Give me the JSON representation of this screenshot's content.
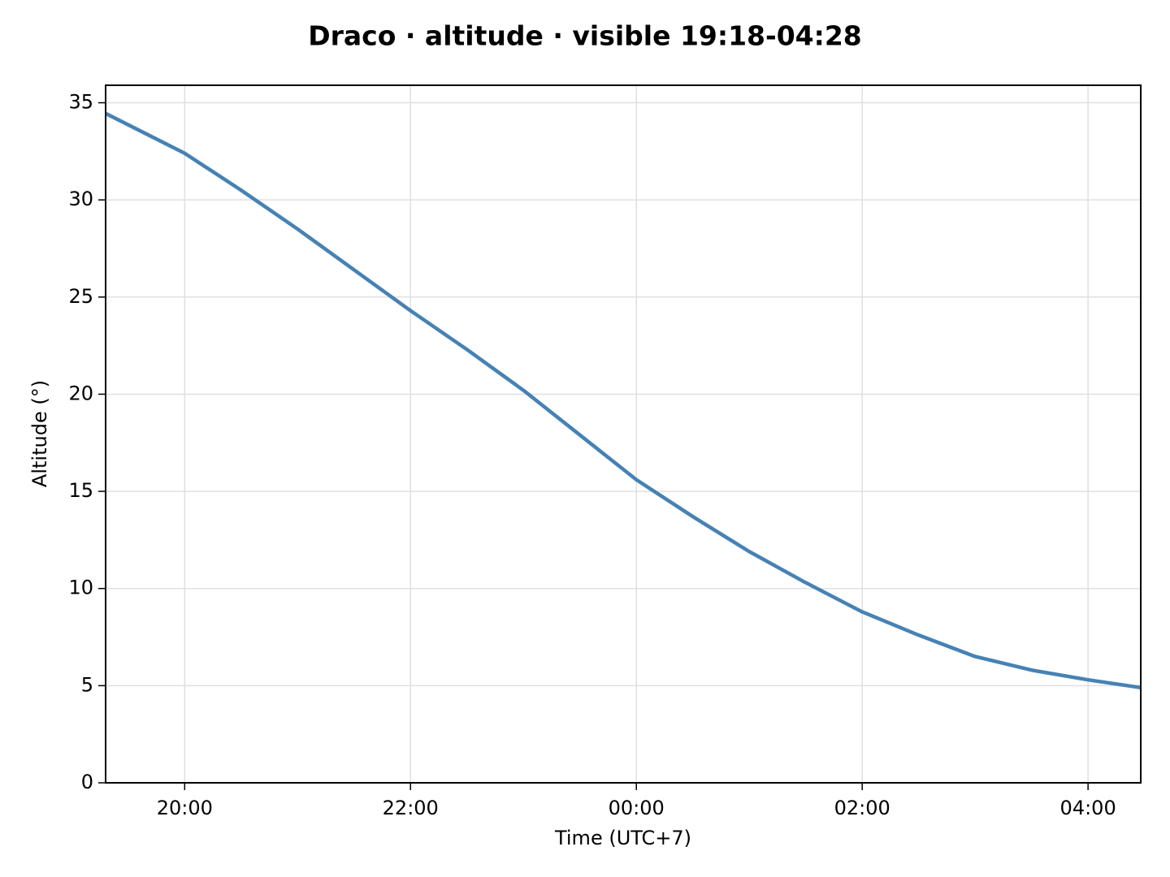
{
  "chart_data": {
    "type": "line",
    "title": "Draco · altitude · visible 19:18-04:28",
    "x_label": "Time (UTC+7)",
    "y_label": "Altitude (°)",
    "x": [
      "19:18",
      "20:00",
      "20:30",
      "21:00",
      "21:30",
      "22:00",
      "22:30",
      "23:00",
      "23:30",
      "00:00",
      "00:30",
      "01:00",
      "01:30",
      "02:00",
      "02:30",
      "03:00",
      "03:30",
      "04:00",
      "04:28"
    ],
    "values": [
      34.45,
      32.4,
      30.5,
      28.5,
      26.4,
      24.3,
      22.3,
      20.2,
      17.9,
      15.6,
      13.7,
      11.9,
      10.3,
      8.8,
      7.6,
      6.5,
      5.8,
      5.3,
      4.9
    ],
    "color": "#4682b4",
    "xlim": [
      "19:18",
      "04:28"
    ],
    "xticks": [
      "20:00",
      "22:00",
      "00:00",
      "02:00",
      "04:00"
    ],
    "ylim": [
      0,
      35.9
    ],
    "yticks": [
      0,
      5,
      10,
      15,
      20,
      25,
      30,
      35
    ],
    "grid": true
  }
}
